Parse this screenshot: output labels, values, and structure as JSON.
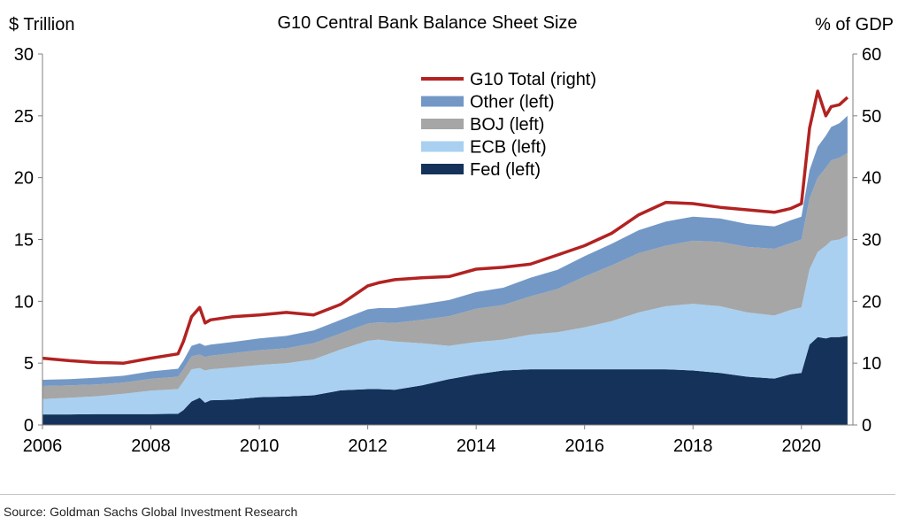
{
  "chart_data": {
    "type": "area",
    "title": "G10 Central Bank Balance Sheet Size",
    "ylabel_left": "$ Trillion",
    "ylabel_right": "% of GDP",
    "xlim": [
      2006,
      2020.95
    ],
    "ylim_left": [
      0,
      30
    ],
    "ylim_right": [
      0,
      60
    ],
    "x_ticks": [
      "2006",
      "2008",
      "2010",
      "2012",
      "2014",
      "2016",
      "2018",
      "2020"
    ],
    "y_ticks_left": [
      "0",
      "5",
      "10",
      "15",
      "20",
      "25",
      "30"
    ],
    "y_ticks_right": [
      "0",
      "10",
      "20",
      "30",
      "40",
      "50",
      "60"
    ],
    "legend_position": "top-center",
    "colors": {
      "Fed": "#14325a",
      "ECB": "#a9d0f0",
      "BOJ": "#a6a6a6",
      "Other": "#7398c6",
      "G10": "#b22222"
    },
    "x": [
      2006.0,
      2006.5,
      2007.0,
      2007.5,
      2008.0,
      2008.5,
      2008.6,
      2008.75,
      2008.9,
      2009.0,
      2009.1,
      2009.5,
      2010.0,
      2010.5,
      2011.0,
      2011.5,
      2012.0,
      2012.2,
      2012.5,
      2013.0,
      2013.5,
      2014.0,
      2014.5,
      2015.0,
      2015.5,
      2016.0,
      2016.5,
      2017.0,
      2017.5,
      2018.0,
      2018.5,
      2019.0,
      2019.5,
      2019.8,
      2020.0,
      2020.15,
      2020.3,
      2020.45,
      2020.55,
      2020.7,
      2020.85
    ],
    "series": [
      {
        "name": "Fed (left)",
        "axis": "left",
        "values": [
          0.85,
          0.85,
          0.87,
          0.88,
          0.88,
          0.9,
          1.2,
          1.9,
          2.2,
          1.8,
          2.0,
          2.05,
          2.25,
          2.3,
          2.4,
          2.8,
          2.9,
          2.9,
          2.85,
          3.2,
          3.7,
          4.1,
          4.4,
          4.5,
          4.5,
          4.5,
          4.5,
          4.5,
          4.5,
          4.4,
          4.2,
          3.9,
          3.75,
          4.1,
          4.2,
          6.5,
          7.1,
          7.0,
          7.1,
          7.1,
          7.2
        ]
      },
      {
        "name": "ECB (left)",
        "axis": "left",
        "values": [
          1.25,
          1.35,
          1.45,
          1.65,
          1.9,
          2.0,
          2.3,
          2.6,
          2.4,
          2.6,
          2.5,
          2.6,
          2.6,
          2.7,
          2.9,
          3.3,
          3.9,
          4.0,
          3.9,
          3.4,
          2.7,
          2.6,
          2.5,
          2.8,
          3.0,
          3.4,
          3.9,
          4.6,
          5.1,
          5.4,
          5.4,
          5.2,
          5.1,
          5.2,
          5.3,
          6.1,
          6.9,
          7.5,
          7.8,
          7.9,
          8.1
        ]
      },
      {
        "name": "BOJ (left)",
        "axis": "left",
        "values": [
          1.05,
          1.0,
          0.95,
          0.9,
          0.95,
          1.0,
          1.0,
          1.05,
          1.1,
          1.1,
          1.1,
          1.15,
          1.2,
          1.2,
          1.3,
          1.3,
          1.4,
          1.4,
          1.5,
          1.9,
          2.4,
          2.7,
          2.8,
          3.1,
          3.5,
          4.1,
          4.5,
          4.8,
          4.9,
          5.1,
          5.2,
          5.3,
          5.4,
          5.4,
          5.5,
          5.7,
          6.0,
          6.3,
          6.5,
          6.6,
          6.7
        ]
      },
      {
        "name": "Other (left)",
        "axis": "left",
        "values": [
          0.5,
          0.5,
          0.55,
          0.55,
          0.6,
          0.65,
          0.7,
          0.85,
          0.9,
          0.9,
          0.9,
          0.9,
          0.95,
          1.0,
          1.05,
          1.1,
          1.15,
          1.15,
          1.2,
          1.25,
          1.3,
          1.35,
          1.4,
          1.5,
          1.55,
          1.65,
          1.75,
          1.85,
          1.95,
          1.95,
          1.9,
          1.85,
          1.8,
          1.85,
          1.85,
          2.3,
          2.5,
          2.6,
          2.7,
          2.8,
          3.0
        ]
      },
      {
        "name": "G10 Total (right)",
        "axis": "right",
        "values": [
          10.8,
          10.4,
          10.1,
          10.0,
          10.8,
          11.5,
          13.5,
          17.5,
          19.0,
          16.5,
          17.0,
          17.5,
          17.8,
          18.2,
          17.8,
          19.5,
          22.5,
          23.0,
          23.5,
          23.8,
          24.0,
          25.2,
          25.5,
          26.0,
          27.5,
          29.0,
          31.0,
          34.0,
          36.0,
          35.8,
          35.2,
          34.8,
          34.4,
          35.0,
          35.8,
          48.0,
          54.0,
          50.0,
          51.5,
          51.8,
          53.0
        ]
      }
    ]
  },
  "legend": [
    {
      "label": "G10 Total (right)",
      "kind": "line",
      "color": "#b22222"
    },
    {
      "label": "Other (left)",
      "kind": "swatch",
      "color": "#7398c6"
    },
    {
      "label": "BOJ (left)",
      "kind": "swatch",
      "color": "#a6a6a6"
    },
    {
      "label": "ECB (left)",
      "kind": "swatch",
      "color": "#a9d0f0"
    },
    {
      "label": "Fed (left)",
      "kind": "swatch",
      "color": "#14325a"
    }
  ],
  "source": "Source: Goldman Sachs Global Investment Research"
}
